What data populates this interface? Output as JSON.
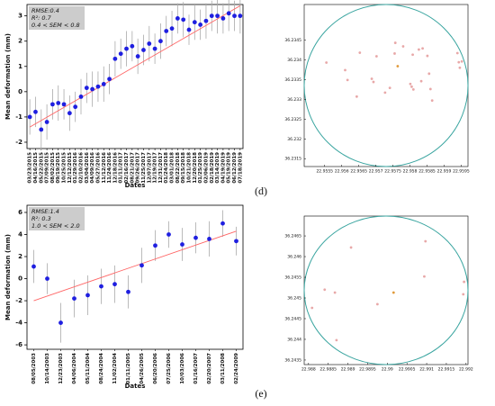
{
  "chart_data": [
    {
      "type": "errorbar",
      "x_label": "Dates",
      "y_label": "Mean deformation (mm)",
      "annotations": [
        "RMSE:0.4",
        "R²: 0.7",
        "0.4 < SEM < 0.8"
      ],
      "categories": [
        "03/23/2015",
        "04/16/2015",
        "05/22/2015",
        "07/09/2015",
        "08/02/2015",
        "09/19/2015",
        "10/25/2015",
        "12/12/2015",
        "01/29/2016",
        "02/10/2016",
        "03/04/2016",
        "04/09/2016",
        "05/27/2016",
        "11/12/2016",
        "11/24/2016",
        "12/18/2016",
        "01/11/2017",
        "02/16/2017",
        "08/21/2017",
        "09/26/2017",
        "11/25/2017",
        "12/07/2017",
        "12/19/2017",
        "12/31/2017",
        "01/24/2018",
        "03/01/2018",
        "08/22/2018",
        "09/15/2018",
        "10/21/2018",
        "12/20/2018",
        "01/25/2019",
        "02/06/2019",
        "02/18/2019",
        "03/14/2019",
        "04/19/2019",
        "05/19/2019",
        "06/12/2019",
        "07/18/2019"
      ],
      "values": [
        -1.0,
        -0.8,
        -1.5,
        -1.2,
        -0.5,
        -0.45,
        -0.5,
        -0.85,
        -0.6,
        -0.2,
        0.15,
        0.1,
        0.2,
        0.3,
        0.5,
        1.3,
        1.5,
        1.7,
        1.8,
        1.4,
        1.65,
        1.9,
        1.7,
        2.0,
        2.4,
        2.5,
        2.9,
        2.85,
        2.45,
        2.75,
        2.65,
        2.8,
        3.0,
        3.0,
        2.9,
        3.1,
        3.0,
        3.0
      ],
      "errors": [
        0.7,
        0.6,
        0.8,
        0.7,
        0.6,
        0.7,
        0.6,
        0.7,
        0.6,
        0.7,
        0.6,
        0.7,
        0.6,
        0.7,
        0.6,
        0.7,
        0.6,
        0.7,
        0.6,
        0.7,
        0.6,
        0.7,
        0.6,
        0.7,
        0.6,
        0.7,
        0.6,
        0.7,
        0.6,
        0.7,
        0.6,
        0.7,
        0.6,
        0.7,
        0.6,
        0.7,
        0.6,
        0.7
      ],
      "color": "#1f1fe0",
      "error_color": "#aaaaaa",
      "trend": [
        -1.4,
        3.4
      ],
      "trend_color": "#ff6666",
      "ylim": [
        -2.25,
        3.45
      ],
      "yticks": [
        -2,
        -1,
        0,
        1,
        2,
        3
      ]
    },
    {
      "type": "scatter",
      "points": {
        "x": [
          22.95555,
          22.9561,
          22.95617,
          22.95653,
          22.95688,
          22.95693,
          22.95644,
          22.95702,
          22.95727,
          22.95741,
          22.95757,
          22.95755,
          22.9578,
          22.95801,
          22.95805,
          22.9581,
          22.95808,
          22.95826,
          22.95837,
          22.95856,
          22.9586,
          22.95865,
          22.95833,
          22.95851,
          22.95939,
          22.95943,
          22.95946,
          22.95952
        ],
        "y": [
          36.23393,
          36.23374,
          36.23349,
          36.23418,
          36.23352,
          36.23344,
          36.23307,
          36.23409,
          36.23317,
          36.23329,
          36.23443,
          36.23416,
          36.23434,
          36.23339,
          36.23332,
          36.23325,
          36.23413,
          36.23426,
          36.23429,
          36.23365,
          36.23326,
          36.23297,
          36.23346,
          36.2341,
          36.23417,
          36.23394,
          36.2338,
          36.23396
        ],
        "color": "#e8a8a8"
      },
      "highlight": {
        "x": [
          22.95764
        ],
        "y": [
          36.23384
        ],
        "color": "#e09a3a"
      },
      "boundary_color": "#3aa5a0",
      "xlim": [
        22.9549,
        22.9597
      ],
      "xticks": [
        22.9555,
        22.956,
        22.9565,
        22.957,
        22.9575,
        22.958,
        22.9585,
        22.959,
        22.9595
      ],
      "ylim": [
        36.2313,
        36.2354
      ],
      "yticks": [
        36.2315,
        36.232,
        36.2325,
        36.233,
        36.2335,
        36.234,
        36.2345
      ]
    },
    {
      "type": "errorbar",
      "x_label": "Dates",
      "y_label": "Mean deformation (mm)",
      "annotations": [
        "RMSE:1.4",
        "R²: 0.3",
        "1.0 < SEM < 2.0"
      ],
      "categories": [
        "08/05/2003",
        "10/14/2003",
        "12/23/2003",
        "04/06/2004",
        "05/11/2004",
        "08/24/2004",
        "11/02/2004",
        "01/11/2005",
        "04/26/2005",
        "06/20/2006",
        "07/25/2006",
        "10/03/2006",
        "01/16/2007",
        "02/20/2007",
        "03/11/2008",
        "02/24/2009"
      ],
      "values": [
        1.1,
        0,
        -4,
        -1.8,
        -1.5,
        -0.7,
        -0.5,
        -1.2,
        1.2,
        3.0,
        4.0,
        3.1,
        3.7,
        3.6,
        5.0,
        3.4
      ],
      "errors": [
        1.5,
        1.4,
        1.8,
        1.7,
        1.8,
        1.6,
        1.7,
        1.5,
        1.6,
        1.4,
        1.2,
        1.5,
        1.4,
        1.6,
        1.2,
        1.3
      ],
      "color": "#1f1fe0",
      "error_color": "#aaaaaa",
      "trend": [
        -2.0,
        4.3
      ],
      "trend_color": "#ff6666",
      "ylim": [
        -6.4,
        6.65
      ],
      "yticks": [
        -6,
        -4,
        -2,
        0,
        2,
        4,
        6
      ]
    },
    {
      "type": "scatter",
      "points": {
        "x": [
          22.98809,
          22.98841,
          22.98867,
          22.98908,
          22.98871,
          22.98975,
          22.99097,
          22.99094,
          22.99195,
          22.99193
        ],
        "y": [
          36.24476,
          36.2452,
          36.24513,
          36.24622,
          36.24398,
          36.24485,
          36.24637,
          36.24552,
          36.24539,
          36.24509
        ],
        "color": "#e8a8a8"
      },
      "highlight": {
        "x": [
          22.99016
        ],
        "y": [
          36.24513
        ],
        "color": "#e09a3a"
      },
      "boundary_color": "#3aa5a0",
      "xlim": [
        22.98789,
        22.99205
      ],
      "xticks": [
        22.988,
        22.9885,
        22.989,
        22.9895,
        22.99,
        22.9905,
        22.991,
        22.9915,
        22.992
      ],
      "ylim": [
        36.24339,
        36.24698
      ],
      "yticks": [
        36.2435,
        36.244,
        36.2445,
        36.245,
        36.2455,
        36.246,
        36.2465
      ]
    }
  ],
  "captions": [
    "(d)",
    "(e)"
  ]
}
